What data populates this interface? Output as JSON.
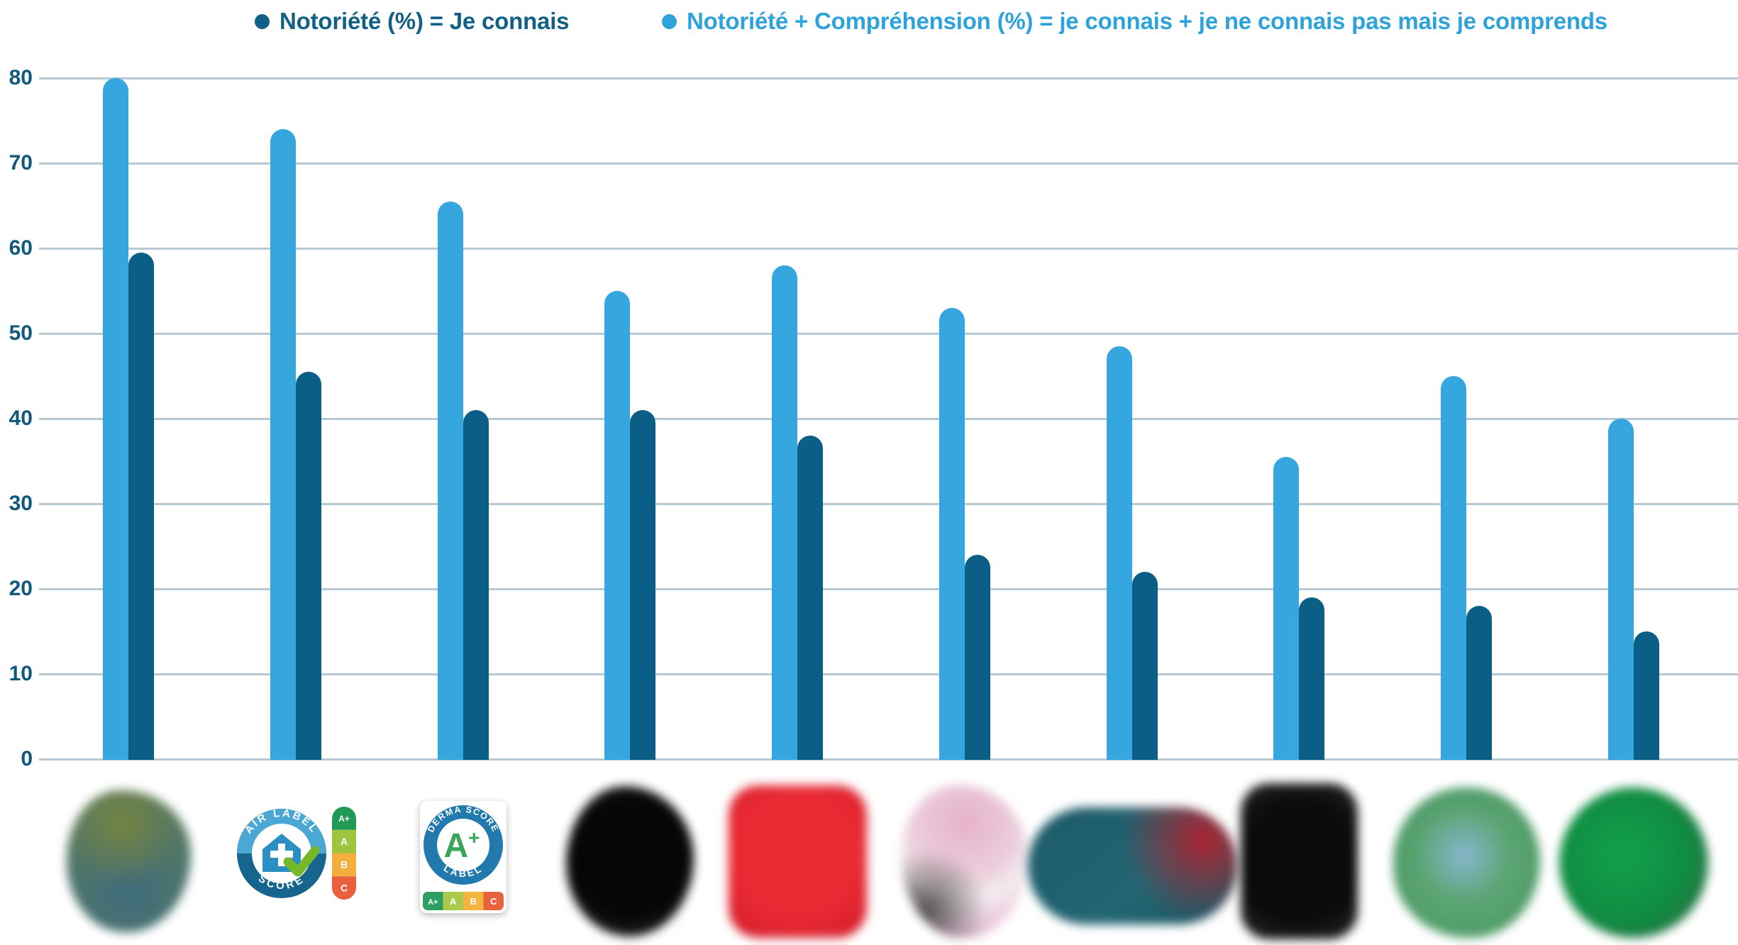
{
  "legend": {
    "items": [
      {
        "label": "Notoriété (%) = Je connais",
        "color": "#136086"
      },
      {
        "label": "Notoriété + Compréhension (%) = je connais + je ne connais pas mais je comprends",
        "color": "#2EA3DB"
      }
    ]
  },
  "chart_data": {
    "type": "bar",
    "title": "",
    "xlabel": "",
    "ylabel": "",
    "ylim": [
      0,
      80
    ],
    "yticks": [
      0,
      10,
      20,
      30,
      40,
      50,
      60,
      70,
      80
    ],
    "grid": true,
    "legend_position": "top",
    "categories": [
      "logo-1-floute",
      "Air Label Score",
      "Derma Score A+ Label",
      "logo-4-floute",
      "logo-5-floute",
      "logo-6-floute",
      "logo-7-floute",
      "logo-8-floute",
      "logo-9-floute",
      "logo-10-floute"
    ],
    "series": [
      {
        "name": "Notoriété + Compréhension (%) = je connais + je ne connais pas mais je comprends",
        "color": "#35A7DE",
        "values": [
          80,
          74,
          65.5,
          55,
          58,
          53,
          48.5,
          35.5,
          45,
          40
        ]
      },
      {
        "name": "Notoriété (%) = Je connais",
        "color": "#0B5E86",
        "values": [
          59.5,
          45.5,
          41,
          41,
          38,
          24,
          22,
          19,
          18,
          15
        ]
      }
    ]
  },
  "logos": [
    {
      "type": "blurred",
      "name": "logo-1-blurred",
      "background": "radial-gradient(circle at 45% 25%, rgba(118,132,63,.95), rgba(118,132,63,0) 48%), radial-gradient(circle at 50% 72%, #3F6B7D 0%, #4F7668 55%, #5E7B5A 100%)"
    },
    {
      "type": "air-label-score",
      "name": "air-label-score-badge",
      "arc_top": "AIR LABEL",
      "arc_bottom": "SCORE",
      "ring_top_color": "#4BA7D3",
      "ring_bottom_color": "#15658F",
      "icon_color": "#2B8FC4",
      "check_color": "#76B82A",
      "scale": [
        "A+",
        "A",
        "B",
        "C"
      ],
      "scale_colors": [
        "#1F9B55",
        "#9DC53E",
        "#F3AE3D",
        "#E8603C"
      ]
    },
    {
      "type": "derma-score",
      "name": "derma-score-label",
      "arc_top": "DERMA SCORE",
      "arc_bottom": "LABEL",
      "grade": "A+",
      "grade_color": "#3AA55C",
      "ring_color": "#2179AD",
      "scale": [
        "A+",
        "A",
        "B",
        "C"
      ],
      "scale_colors": [
        "#2F9E62",
        "#ABC94D",
        "#F4B53F",
        "#E7633D"
      ]
    },
    {
      "type": "blurred",
      "name": "logo-4-blurred",
      "background": "radial-gradient(circle at 50% 48%, #060606 55%, #1c1c1c 82%, #2e2e2e 100%)"
    },
    {
      "type": "blurred",
      "name": "logo-5-blurred",
      "background": "radial-gradient(circle at 50% 45%, #EA2A33 55%, #D41F2C 92%)"
    },
    {
      "type": "blurred",
      "name": "logo-6-blurred",
      "background": "radial-gradient(circle at 20% 82%, rgba(70,70,70,.92), rgba(70,70,70,0) 38%), radial-gradient(circle at 50% 24%, #E5B1CA 0%, #ECCFDC 42%, #F4ECF1 58%, #E2A9C6 100%)"
    },
    {
      "type": "blurred",
      "name": "logo-7-blurred",
      "background": "radial-gradient(circle at 84% 28%, rgba(178,32,45,.95), rgba(178,32,45,0) 42%), linear-gradient(140deg, #1D5A68 0%, #226673 60%, #1A525F 100%)"
    },
    {
      "type": "blurred",
      "name": "logo-8-blurred",
      "background": "radial-gradient(circle at 50% 50%, #0b0b0b 60%, #1f1f1f 88%, #2b2b2b 100%)"
    },
    {
      "type": "blurred",
      "name": "logo-9-blurred",
      "background": "radial-gradient(circle at 48% 45%, #87B7CF 0%, rgba(135,183,207,0) 42%), radial-gradient(circle at 50% 50%, #5AA471 45%, #4C9A66 78%, #6FAE7E 100%)"
    },
    {
      "type": "blurred",
      "name": "logo-10-blurred",
      "background": "radial-gradient(circle at 42% 45%, #12A14A 0%, #0F8C42 55%, #2E6B44 85%, #4F5F52 100%)"
    }
  ]
}
